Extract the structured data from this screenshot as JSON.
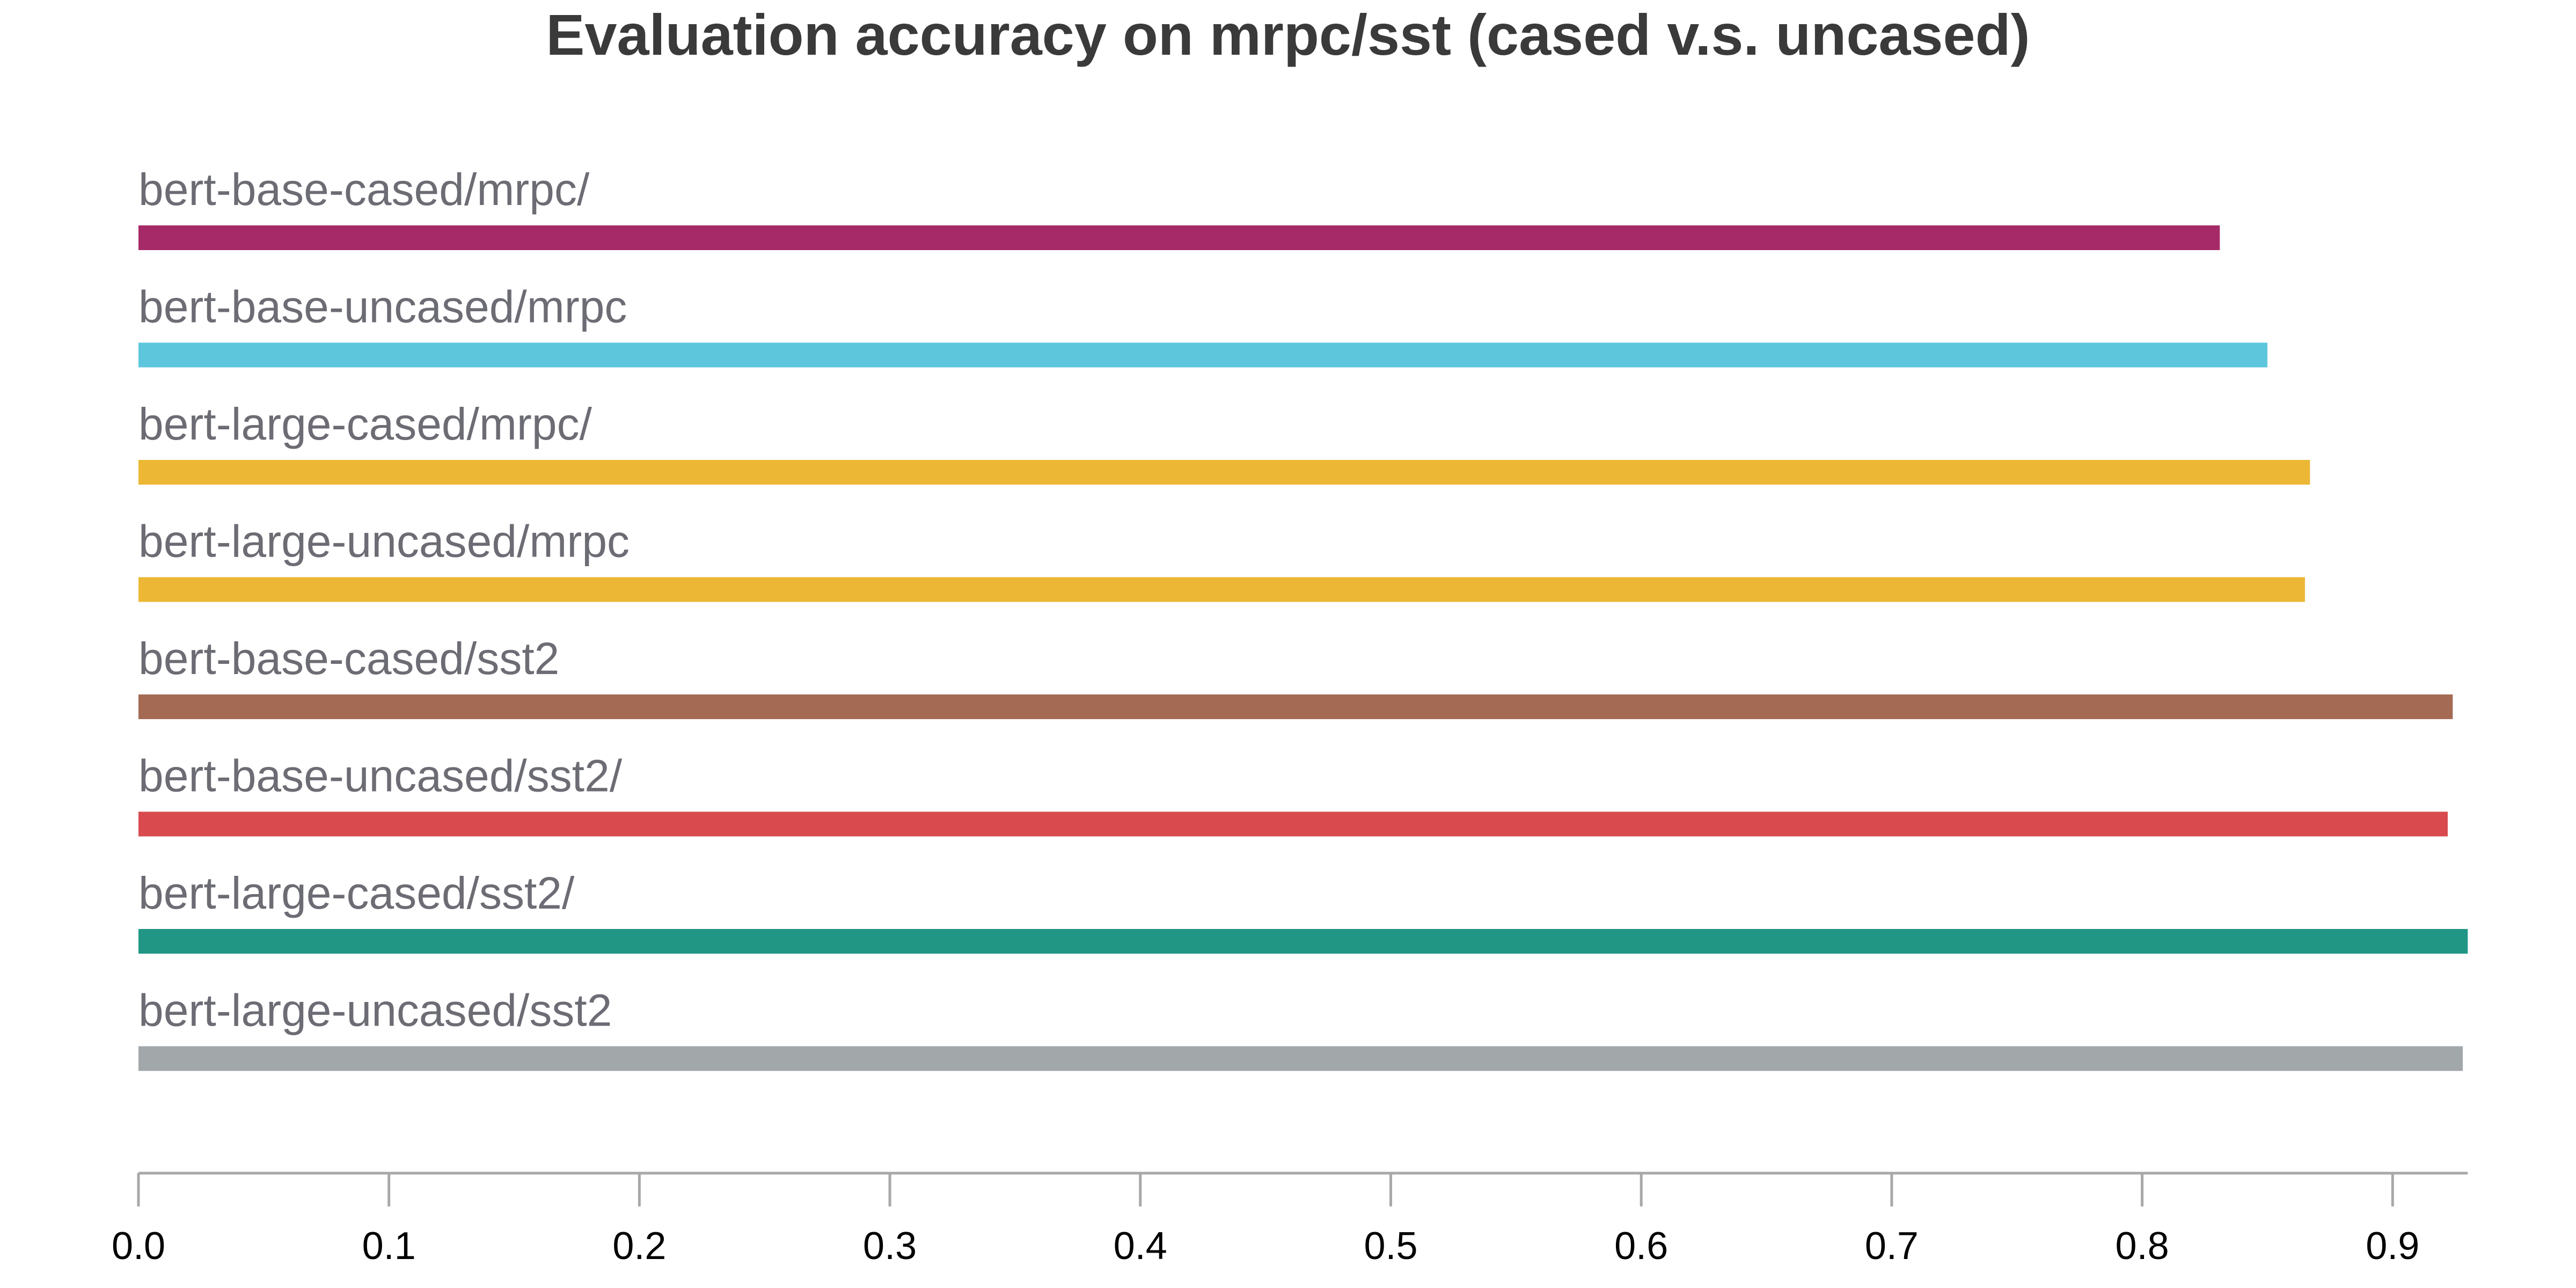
{
  "chart_data": {
    "type": "bar",
    "orientation": "horizontal",
    "title": "Evaluation accuracy on mrpc/sst (cased v.s. uncased)",
    "xlabel": "",
    "ylabel": "",
    "xlim": [
      0,
      0.93
    ],
    "xticks": [
      "0.0",
      "0.1",
      "0.2",
      "0.3",
      "0.4",
      "0.5",
      "0.6",
      "0.7",
      "0.8",
      "0.9"
    ],
    "grid": false,
    "bars": [
      {
        "label": "bert-base-cased/mrpc/",
        "value": 0.831,
        "color": "#a52a67"
      },
      {
        "label": "bert-base-uncased/mrpc",
        "value": 0.85,
        "color": "#5ec6dc"
      },
      {
        "label": "bert-large-cased/mrpc/",
        "value": 0.867,
        "color": "#ecb734"
      },
      {
        "label": "bert-large-uncased/mrpc",
        "value": 0.865,
        "color": "#ecb734"
      },
      {
        "label": "bert-base-cased/sst2",
        "value": 0.924,
        "color": "#a56a54"
      },
      {
        "label": "bert-base-uncased/sst2/",
        "value": 0.922,
        "color": "#d84a4e"
      },
      {
        "label": "bert-large-cased/sst2/",
        "value": 0.93,
        "color": "#229684"
      },
      {
        "label": "bert-large-uncased/sst2",
        "value": 0.928,
        "color": "#a2a7aa"
      }
    ]
  }
}
